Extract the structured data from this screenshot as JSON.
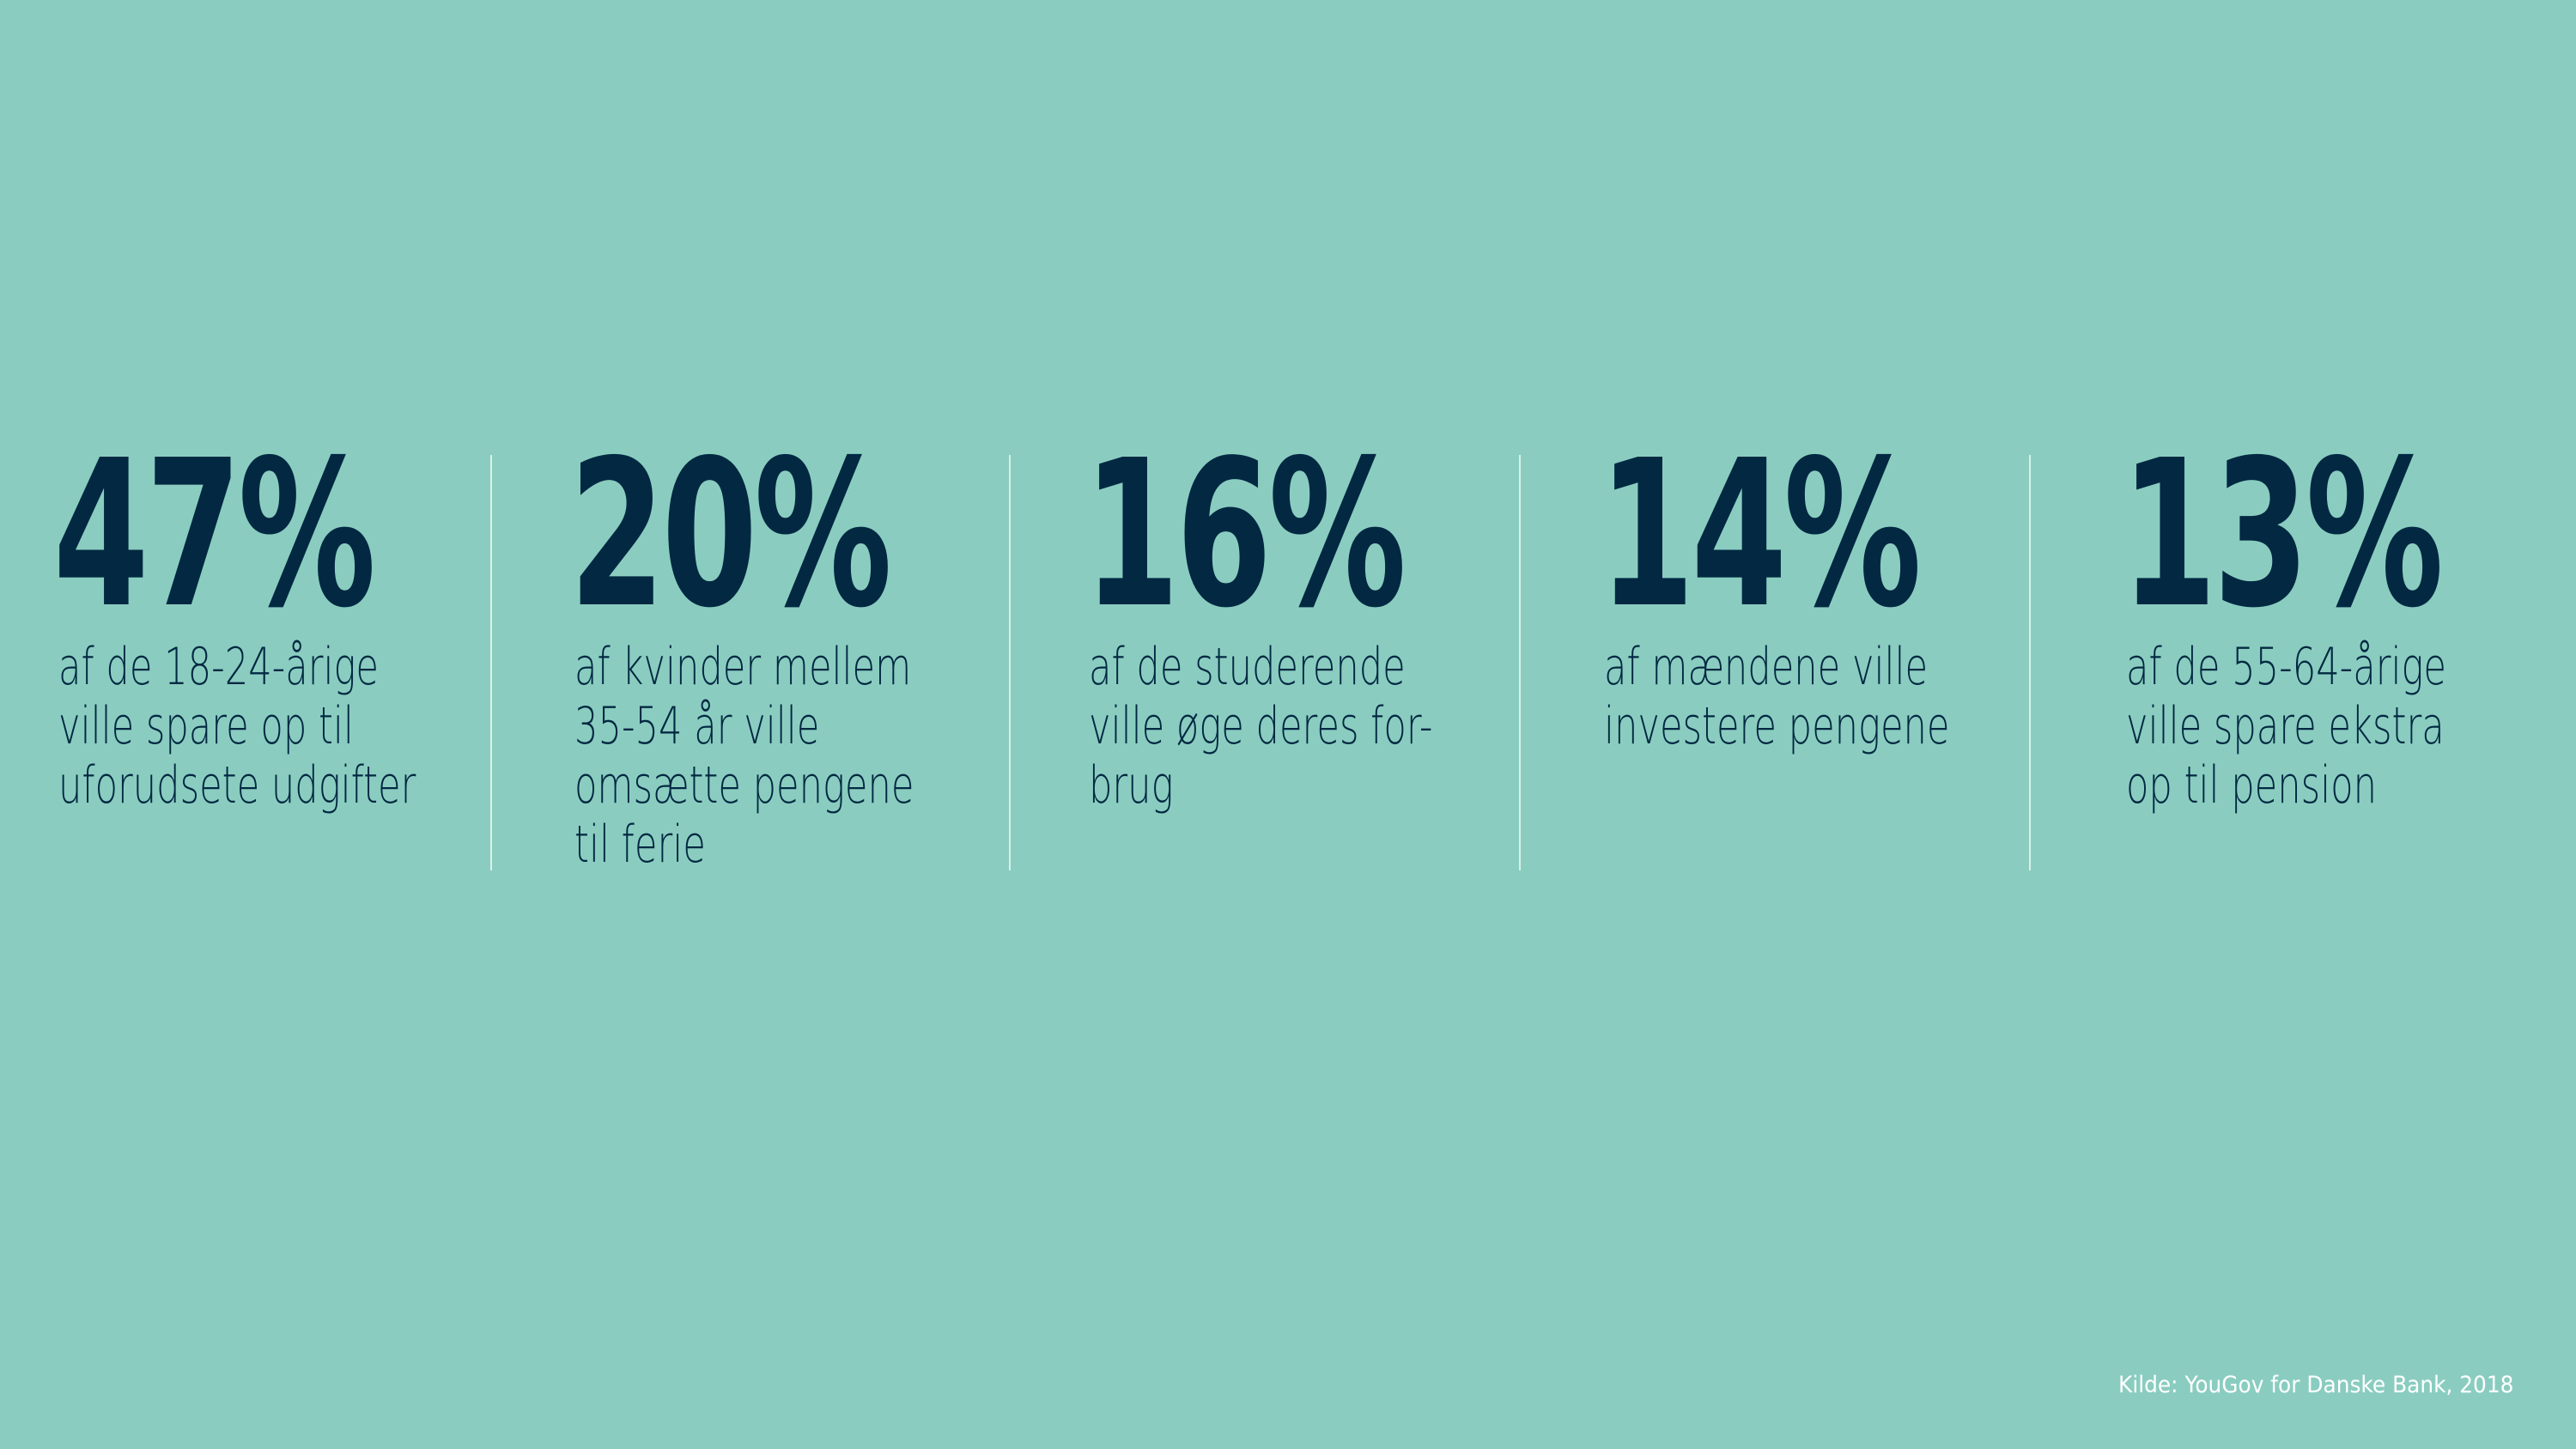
{
  "stats": [
    {
      "value": "47%",
      "description": "af de 18-24-årige\nville spare op til\nuforudsete udgifter"
    },
    {
      "value": "20%",
      "description": "af kvinder mellem\n35-54 år ville\nomsætte pengene\ntil ferie"
    },
    {
      "value": "16%",
      "description": "af de studerende\nville øge deres for-\nbrug"
    },
    {
      "value": "14%",
      "description": "af mændene ville\ninvestere pengene"
    },
    {
      "value": "13%",
      "description": "af de 55-64-årige\nville spare ekstra\nop til pension"
    }
  ],
  "source": "Kilde: YouGov for Danske Bank, 2018",
  "colors": {
    "background": "#8acdc0",
    "text": "#022842",
    "divider": "#d9efe9",
    "source": "#ffffff"
  }
}
